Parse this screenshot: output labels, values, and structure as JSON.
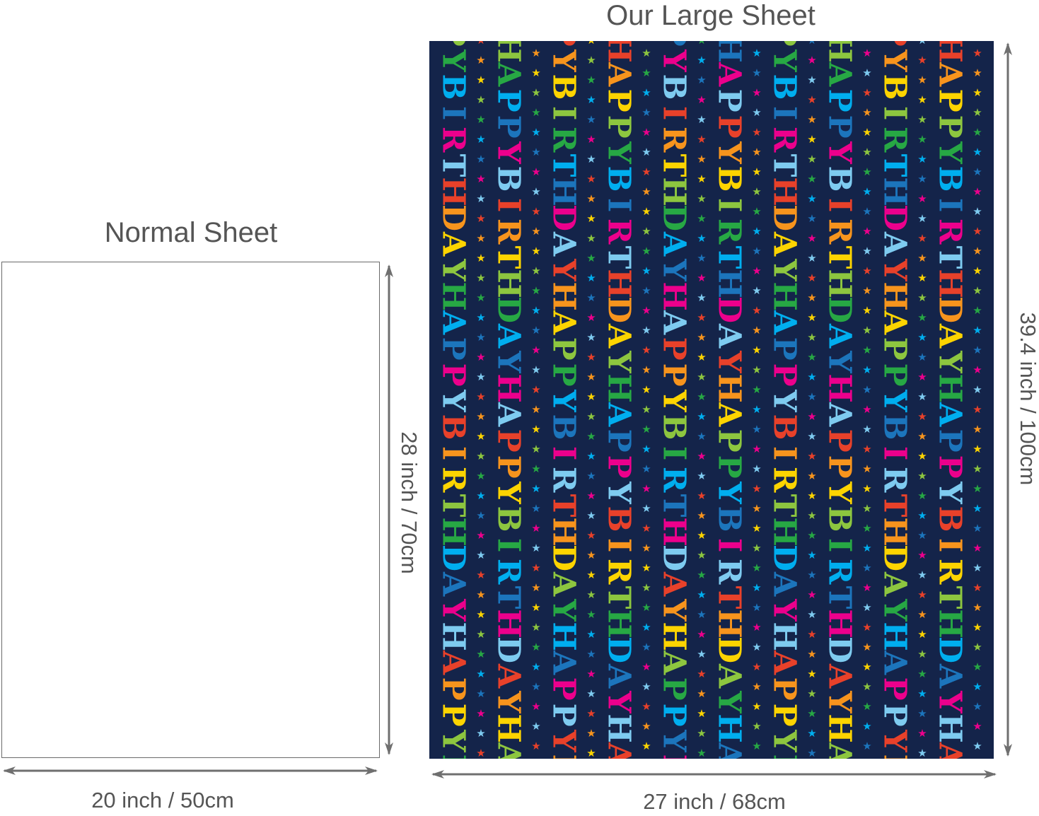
{
  "normal": {
    "title": "Normal Sheet",
    "width_label": "20 inch / 50cm",
    "height_label": "28 inch / 70cm"
  },
  "large": {
    "title": "Our Large Sheet",
    "width_label": "27 inch / 68cm",
    "height_label": "39.4 inch / 100cm",
    "pattern_word_1": "HAPPY",
    "pattern_word_2": "BIRTHDAY",
    "background_color": "#14244a",
    "pattern_colors": [
      "#e8412a",
      "#f7941d",
      "#fdd400",
      "#8dc63f",
      "#27a844",
      "#00aeef",
      "#1c75bc",
      "#ec008c",
      "#7ecbf0"
    ]
  },
  "colors": {
    "text": "#555555",
    "arrow": "#6f6f6f"
  }
}
